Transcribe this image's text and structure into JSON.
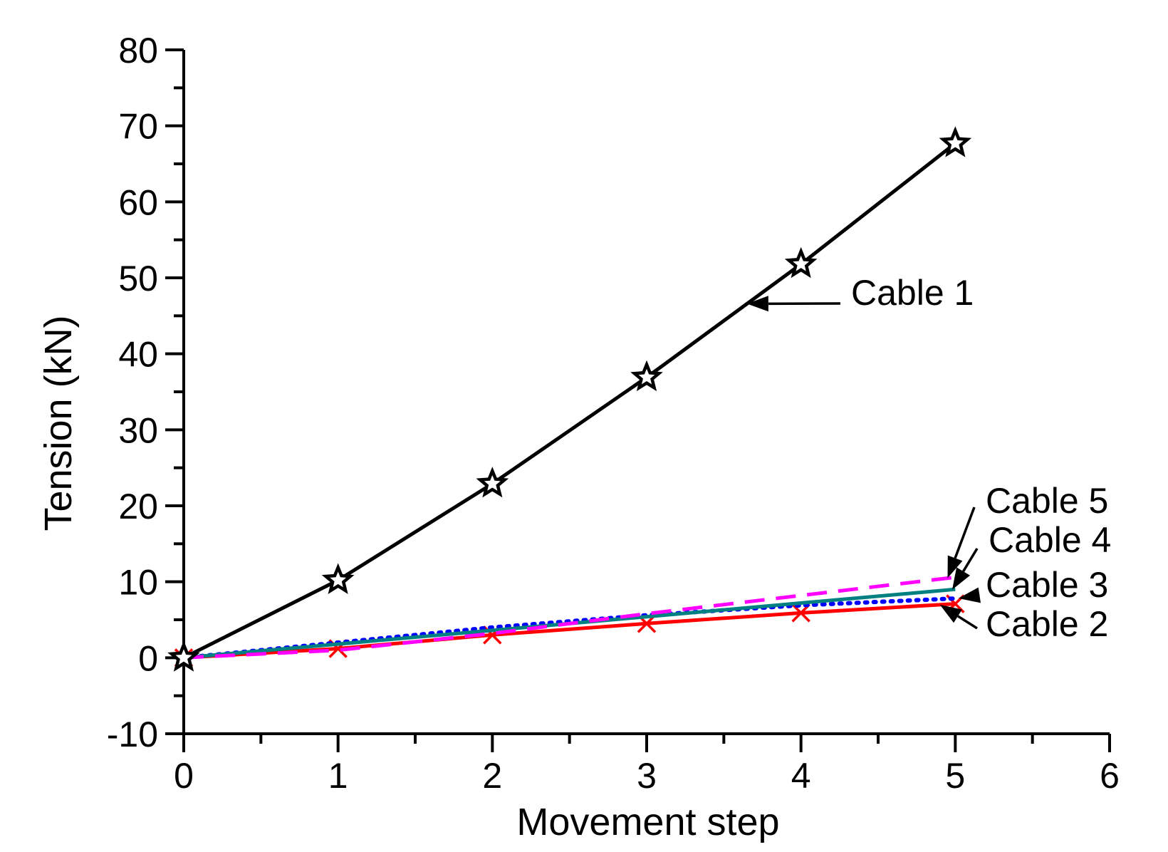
{
  "chart_data": {
    "type": "line",
    "title": "",
    "xlabel": "Movement step",
    "ylabel": "Tension (kN)",
    "xlim": [
      0,
      6
    ],
    "ylim": [
      -10,
      80
    ],
    "xticks": [
      "0",
      "1",
      "2",
      "3",
      "4",
      "5",
      "6"
    ],
    "yticks": [
      "-10",
      "0",
      "10",
      "20",
      "30",
      "40",
      "50",
      "60",
      "70",
      "80"
    ],
    "grid": false,
    "legend": "none (series labeled by arrow annotations)",
    "x": [
      0,
      1,
      2,
      3,
      4,
      5
    ],
    "series": [
      {
        "name": "Cable 1",
        "color": "#000000",
        "style": "solid",
        "marker": "star",
        "values": [
          0,
          10.2,
          22.9,
          36.9,
          51.8,
          67.7
        ]
      },
      {
        "name": "Cable 2",
        "color": "#ff0000",
        "style": "solid",
        "marker": "x",
        "values": [
          0,
          1.2,
          3.0,
          4.5,
          5.9,
          7.1
        ]
      },
      {
        "name": "Cable 3",
        "color": "#0000ff",
        "style": "dotted",
        "marker": "none",
        "values": [
          0,
          2.0,
          4.0,
          5.6,
          6.9,
          7.8
        ]
      },
      {
        "name": "Cable 4",
        "color": "#008080",
        "style": "solid",
        "marker": "none",
        "values": [
          0,
          1.8,
          3.6,
          5.4,
          7.2,
          9.0
        ]
      },
      {
        "name": "Cable 5",
        "color": "#ff00ff",
        "style": "dashed",
        "marker": "none",
        "values": [
          0,
          1.0,
          3.2,
          5.8,
          8.2,
          10.6
        ]
      }
    ],
    "annotations": [
      {
        "text": "Cable 1",
        "target_series": "Cable 1",
        "target_x": 3.65
      },
      {
        "text": "Cable 5",
        "target_series": "Cable 5",
        "target_x": 4.95
      },
      {
        "text": "Cable 4",
        "target_series": "Cable 4",
        "target_x": 4.98
      },
      {
        "text": "Cable 3",
        "target_series": "Cable 3",
        "target_x": 5.02
      },
      {
        "text": "Cable 2",
        "target_series": "Cable 2",
        "target_x": 4.9
      }
    ]
  }
}
